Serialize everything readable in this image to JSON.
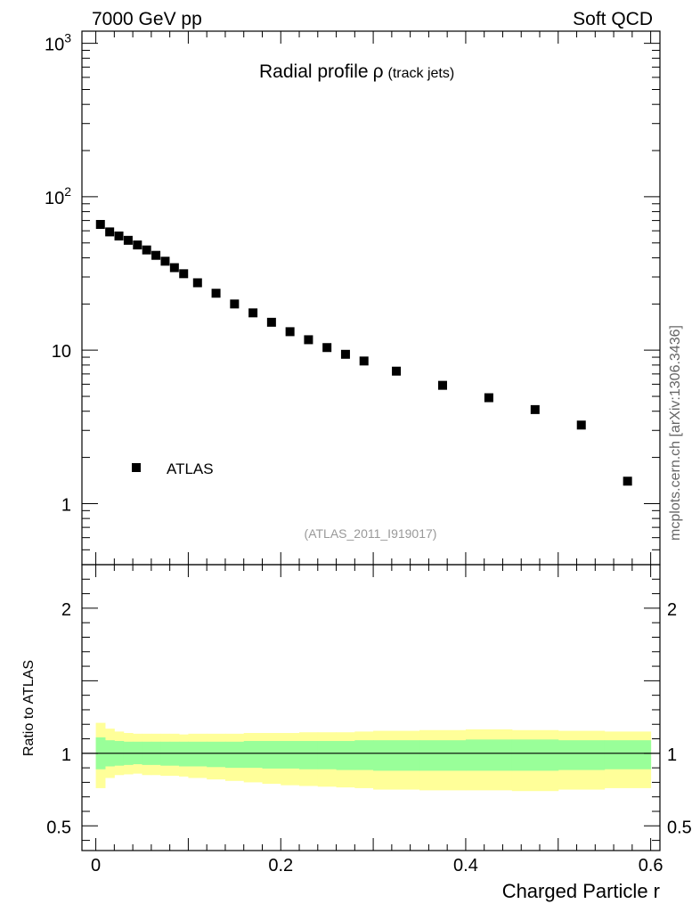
{
  "header": {
    "left": "7000 GeV pp",
    "right": "Soft QCD"
  },
  "side_label": "mcplots.cern.ch [arXiv:1306.3436]",
  "chart_data": [
    {
      "type": "scatter",
      "panel": "main",
      "title": "Radial profile",
      "title_symbol": "ρ",
      "title_sub": "(track jets)",
      "analysis": "(ATLAS_2011_I919017)",
      "xlim": [
        -0.015,
        0.61
      ],
      "ylim": [
        0.4,
        1200
      ],
      "yscale": "log",
      "ytick_labels": [
        {
          "v": 1,
          "label": "1"
        },
        {
          "v": 10,
          "label": "10"
        },
        {
          "v": 100,
          "label": "10",
          "sup": "2"
        },
        {
          "v": 1000,
          "label": "10",
          "sup": "3"
        }
      ],
      "legend": {
        "placement": "bottom-left",
        "entries": [
          "ATLAS"
        ]
      },
      "series": [
        {
          "name": "ATLAS",
          "color": "#000000",
          "x": [
            0.005,
            0.015,
            0.025,
            0.035,
            0.045,
            0.055,
            0.065,
            0.075,
            0.085,
            0.095,
            0.11,
            0.13,
            0.15,
            0.17,
            0.19,
            0.21,
            0.23,
            0.25,
            0.27,
            0.29,
            0.325,
            0.375,
            0.425,
            0.475,
            0.525,
            0.575
          ],
          "y": [
            66,
            59,
            55.5,
            52,
            48.5,
            45,
            41.5,
            38,
            34.5,
            31.5,
            27.5,
            23.5,
            20,
            17.5,
            15.2,
            13.2,
            11.7,
            10.4,
            9.4,
            8.5,
            7.3,
            5.9,
            4.9,
            4.1,
            3.25,
            1.4
          ]
        }
      ]
    },
    {
      "type": "area",
      "panel": "ratio",
      "ylabel": "Ratio to ATLAS",
      "xlabel": "Charged Particle r",
      "xlim": [
        -0.015,
        0.61
      ],
      "ylim": [
        0.33,
        2.3
      ],
      "xtick_labels": [
        {
          "v": 0,
          "label": "0"
        },
        {
          "v": 0.2,
          "label": "0.2"
        },
        {
          "v": 0.4,
          "label": "0.4"
        },
        {
          "v": 0.6,
          "label": "0.6"
        }
      ],
      "ytick_labels": [
        {
          "v": 0.5,
          "label": "0.5"
        },
        {
          "v": 1,
          "label": "1"
        },
        {
          "v": 2,
          "label": "2"
        }
      ],
      "reference_line": 1,
      "bin_edges": [
        0,
        0.01,
        0.02,
        0.03,
        0.04,
        0.05,
        0.06,
        0.07,
        0.08,
        0.09,
        0.1,
        0.12,
        0.14,
        0.16,
        0.18,
        0.2,
        0.22,
        0.24,
        0.26,
        0.28,
        0.3,
        0.35,
        0.4,
        0.45,
        0.5,
        0.55,
        0.6
      ],
      "bands": [
        {
          "color": "#ffff99",
          "lower": [
            0.76,
            0.83,
            0.85,
            0.855,
            0.86,
            0.85,
            0.85,
            0.845,
            0.845,
            0.84,
            0.83,
            0.82,
            0.81,
            0.8,
            0.79,
            0.78,
            0.775,
            0.77,
            0.765,
            0.76,
            0.75,
            0.745,
            0.745,
            0.74,
            0.75,
            0.76
          ],
          "upper": [
            1.21,
            1.17,
            1.15,
            1.14,
            1.135,
            1.135,
            1.135,
            1.135,
            1.135,
            1.13,
            1.135,
            1.135,
            1.135,
            1.14,
            1.14,
            1.14,
            1.145,
            1.145,
            1.145,
            1.15,
            1.155,
            1.16,
            1.165,
            1.16,
            1.155,
            1.15
          ]
        },
        {
          "color": "#99ff99",
          "lower": [
            0.89,
            0.91,
            0.915,
            0.92,
            0.925,
            0.92,
            0.92,
            0.915,
            0.915,
            0.91,
            0.91,
            0.905,
            0.9,
            0.9,
            0.895,
            0.895,
            0.89,
            0.89,
            0.885,
            0.885,
            0.88,
            0.88,
            0.88,
            0.88,
            0.885,
            0.89
          ],
          "upper": [
            1.11,
            1.09,
            1.085,
            1.08,
            1.08,
            1.08,
            1.08,
            1.08,
            1.08,
            1.08,
            1.08,
            1.08,
            1.08,
            1.085,
            1.085,
            1.085,
            1.085,
            1.085,
            1.085,
            1.09,
            1.09,
            1.09,
            1.095,
            1.095,
            1.09,
            1.09
          ]
        }
      ]
    }
  ]
}
